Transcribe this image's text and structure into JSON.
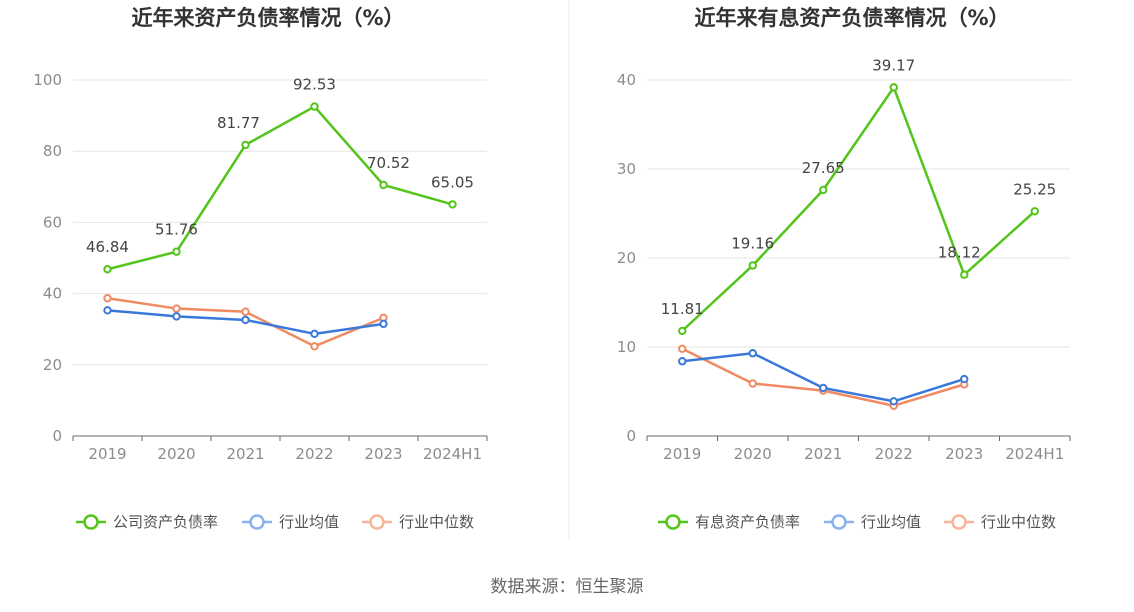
{
  "chart_data": [
    {
      "type": "line",
      "title": "近年来资产负债率情况（%）",
      "categories": [
        "2019",
        "2020",
        "2021",
        "2022",
        "2023",
        "2024H1"
      ],
      "ylim": [
        0,
        100
      ],
      "yticks": [
        0,
        20,
        40,
        60,
        80,
        100
      ],
      "grid": true,
      "legend_position": "bottom",
      "series": [
        {
          "name": "公司资产负债率",
          "color": "#52c41a",
          "values": [
            46.84,
            51.76,
            81.77,
            92.53,
            70.52,
            65.05
          ],
          "labels": [
            "46.84",
            "51.76",
            "81.77",
            "92.53",
            "70.52",
            "65.05"
          ]
        },
        {
          "name": "行业均值",
          "color": "#3a78d9",
          "values": [
            35.3,
            33.6,
            32.6,
            28.7,
            31.5,
            null
          ]
        },
        {
          "name": "行业中位数",
          "color": "#f08a62",
          "values": [
            38.7,
            35.8,
            34.9,
            25.2,
            33.2,
            null
          ]
        }
      ]
    },
    {
      "type": "line",
      "title": "近年来有息资产负债率情况（%）",
      "categories": [
        "2019",
        "2020",
        "2021",
        "2022",
        "2023",
        "2024H1"
      ],
      "ylim": [
        0,
        40
      ],
      "yticks": [
        0,
        10,
        20,
        30,
        40
      ],
      "grid": true,
      "legend_position": "bottom",
      "series": [
        {
          "name": "有息资产负债率",
          "color": "#52c41a",
          "values": [
            11.81,
            19.16,
            27.65,
            39.17,
            18.12,
            25.25
          ],
          "labels": [
            "11.81",
            "19.16",
            "27.65",
            "39.17",
            "18.12",
            "25.25"
          ]
        },
        {
          "name": "行业均值",
          "color": "#3a78d9",
          "values": [
            8.4,
            9.3,
            5.4,
            3.9,
            6.4,
            null
          ]
        },
        {
          "name": "行业中位数",
          "color": "#f08a62",
          "values": [
            9.8,
            5.9,
            5.1,
            3.4,
            5.8,
            null
          ]
        }
      ]
    }
  ],
  "legend_colors": {
    "#52c41a": "#52c41a",
    "#3a78d9": "#8ab0ee",
    "#f08a62": "#f7b59a"
  },
  "footer": {
    "source": "数据来源：恒生聚源"
  }
}
